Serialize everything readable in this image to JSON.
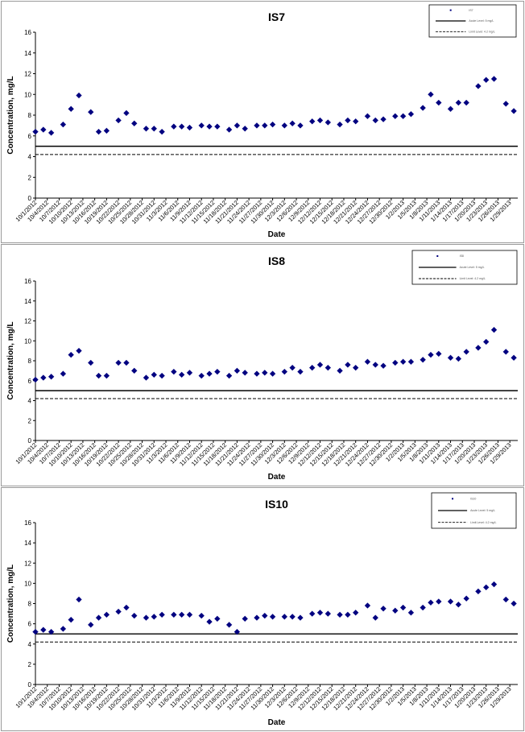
{
  "chart_data": [
    {
      "type": "scatter",
      "title": "IS7",
      "xlabel": "Date",
      "ylabel": "Concentration, mg/L",
      "ylim": [
        0,
        16
      ],
      "yticks": [
        0,
        2,
        4,
        6,
        8,
        10,
        12,
        14,
        16
      ],
      "xtick_labels": [
        "10/1/2012",
        "10/4/2012",
        "10/7/2012",
        "10/10/2012",
        "10/13/2012",
        "10/16/2012",
        "10/19/2012",
        "10/22/2012",
        "10/25/2012",
        "10/28/2012",
        "10/31/2012",
        "11/3/2012",
        "11/6/2012",
        "11/9/2012",
        "11/12/2012",
        "11/15/2012",
        "11/18/2012",
        "11/21/2012",
        "11/24/2012",
        "11/27/2012",
        "11/30/2012",
        "12/3/2012",
        "12/6/2012",
        "12/9/2012",
        "12/12/2012",
        "12/15/2012",
        "12/18/2012",
        "12/21/2012",
        "12/24/2012",
        "12/27/2012",
        "12/30/2012",
        "1/2/2013",
        "1/5/2013",
        "1/8/2013",
        "1/11/2013",
        "1/14/2013",
        "1/17/2013",
        "1/20/2013",
        "1/23/2013",
        "1/26/2013",
        "1/29/2013"
      ],
      "x_range": [
        "10/1/2012",
        "1/31/2013"
      ],
      "grid": false,
      "legend": {
        "placement": "top-right",
        "entries": [
          {
            "label": "IS7",
            "style": "marker"
          },
          {
            "label": "Acute Level: 5 mg/L",
            "style": "solid"
          },
          {
            "label": "Limit Level: 4.2 mg/L",
            "style": "dashed"
          }
        ]
      },
      "reference_lines": [
        {
          "label": "Acute Level: 5 mg/L",
          "y": 5,
          "style": "solid"
        },
        {
          "label": "Limit Level: 4.2 mg/L",
          "y": 4.2,
          "style": "dashed"
        }
      ],
      "series": [
        {
          "name": "IS7",
          "color": "#000080",
          "points": [
            [
              "10/1/2012",
              6.4
            ],
            [
              "10/3/2012",
              6.6
            ],
            [
              "10/5/2012",
              6.3
            ],
            [
              "10/8/2012",
              7.1
            ],
            [
              "10/10/2012",
              8.6
            ],
            [
              "10/12/2012",
              9.9
            ],
            [
              "10/15/2012",
              8.3
            ],
            [
              "10/17/2012",
              6.4
            ],
            [
              "10/19/2012",
              6.5
            ],
            [
              "10/22/2012",
              7.5
            ],
            [
              "10/24/2012",
              8.2
            ],
            [
              "10/26/2012",
              7.2
            ],
            [
              "10/29/2012",
              6.7
            ],
            [
              "10/31/2012",
              6.7
            ],
            [
              "11/2/2012",
              6.4
            ],
            [
              "11/5/2012",
              6.9
            ],
            [
              "11/7/2012",
              6.9
            ],
            [
              "11/9/2012",
              6.8
            ],
            [
              "11/12/2012",
              7.0
            ],
            [
              "11/14/2012",
              6.9
            ],
            [
              "11/16/2012",
              6.9
            ],
            [
              "11/19/2012",
              6.6
            ],
            [
              "11/21/2012",
              7.0
            ],
            [
              "11/23/2012",
              6.7
            ],
            [
              "11/26/2012",
              7.0
            ],
            [
              "11/28/2012",
              7.0
            ],
            [
              "11/30/2012",
              7.1
            ],
            [
              "12/3/2012",
              7.0
            ],
            [
              "12/5/2012",
              7.2
            ],
            [
              "12/7/2012",
              7.0
            ],
            [
              "12/10/2012",
              7.4
            ],
            [
              "12/12/2012",
              7.5
            ],
            [
              "12/14/2012",
              7.3
            ],
            [
              "12/17/2012",
              7.1
            ],
            [
              "12/19/2012",
              7.5
            ],
            [
              "12/21/2012",
              7.4
            ],
            [
              "12/24/2012",
              7.9
            ],
            [
              "12/26/2012",
              7.5
            ],
            [
              "12/28/2012",
              7.6
            ],
            [
              "12/31/2012",
              7.9
            ],
            [
              "1/2/2013",
              7.9
            ],
            [
              "1/4/2013",
              8.1
            ],
            [
              "1/7/2013",
              8.7
            ],
            [
              "1/9/2013",
              10.0
            ],
            [
              "1/11/2013",
              9.2
            ],
            [
              "1/14/2013",
              8.6
            ],
            [
              "1/16/2013",
              9.2
            ],
            [
              "1/18/2013",
              9.2
            ],
            [
              "1/21/2013",
              10.8
            ],
            [
              "1/23/2013",
              11.4
            ],
            [
              "1/25/2013",
              11.5
            ],
            [
              "1/28/2013",
              9.1
            ],
            [
              "1/30/2013",
              8.4
            ]
          ]
        }
      ]
    },
    {
      "type": "scatter",
      "title": "IS8",
      "xlabel": "Date",
      "ylabel": "Concentration, mg/L",
      "ylim": [
        0,
        16
      ],
      "yticks": [
        0,
        2,
        4,
        6,
        8,
        10,
        12,
        14,
        16
      ],
      "xtick_labels": [
        "10/1/2012",
        "10/4/2012",
        "10/7/2012",
        "10/10/2012",
        "10/13/2012",
        "10/16/2012",
        "10/19/2012",
        "10/22/2012",
        "10/25/2012",
        "10/28/2012",
        "10/31/2012",
        "11/3/2012",
        "11/6/2012",
        "11/9/2012",
        "11/12/2012",
        "11/15/2012",
        "11/18/2012",
        "11/21/2012",
        "11/24/2012",
        "11/27/2012",
        "11/30/2012",
        "12/3/2012",
        "12/6/2012",
        "12/9/2012",
        "12/12/2012",
        "12/15/2012",
        "12/18/2012",
        "12/21/2012",
        "12/24/2012",
        "12/27/2012",
        "12/30/2012",
        "1/2/2013",
        "1/5/2013",
        "1/8/2013",
        "1/11/2013",
        "1/14/2013",
        "1/17/2013",
        "1/20/2013",
        "1/23/2013",
        "1/26/2013",
        "1/29/2013"
      ],
      "x_range": [
        "10/1/2012",
        "1/31/2013"
      ],
      "grid": false,
      "legend": {
        "placement": "top-right",
        "entries": [
          {
            "label": "IS8",
            "style": "marker"
          },
          {
            "label": "Acute Level: 5 mg/L",
            "style": "solid"
          },
          {
            "label": "Limit Level: 4.2 mg/L",
            "style": "dashed"
          }
        ]
      },
      "reference_lines": [
        {
          "label": "Acute Level: 5 mg/L",
          "y": 5,
          "style": "solid"
        },
        {
          "label": "Limit Level: 4.2 mg/L",
          "y": 4.2,
          "style": "dashed"
        }
      ],
      "series": [
        {
          "name": "IS8",
          "color": "#000080",
          "points": [
            [
              "10/1/2012",
              6.1
            ],
            [
              "10/3/2012",
              6.3
            ],
            [
              "10/5/2012",
              6.4
            ],
            [
              "10/8/2012",
              6.7
            ],
            [
              "10/10/2012",
              8.6
            ],
            [
              "10/12/2012",
              9.0
            ],
            [
              "10/15/2012",
              7.8
            ],
            [
              "10/17/2012",
              6.5
            ],
            [
              "10/19/2012",
              6.5
            ],
            [
              "10/22/2012",
              7.8
            ],
            [
              "10/24/2012",
              7.8
            ],
            [
              "10/26/2012",
              7.0
            ],
            [
              "10/29/2012",
              6.3
            ],
            [
              "10/31/2012",
              6.6
            ],
            [
              "11/2/2012",
              6.5
            ],
            [
              "11/5/2012",
              6.9
            ],
            [
              "11/7/2012",
              6.6
            ],
            [
              "11/9/2012",
              6.8
            ],
            [
              "11/12/2012",
              6.5
            ],
            [
              "11/14/2012",
              6.7
            ],
            [
              "11/16/2012",
              6.9
            ],
            [
              "11/19/2012",
              6.5
            ],
            [
              "11/21/2012",
              7.0
            ],
            [
              "11/23/2012",
              6.8
            ],
            [
              "11/26/2012",
              6.7
            ],
            [
              "11/28/2012",
              6.8
            ],
            [
              "11/30/2012",
              6.7
            ],
            [
              "12/3/2012",
              6.9
            ],
            [
              "12/5/2012",
              7.3
            ],
            [
              "12/7/2012",
              6.9
            ],
            [
              "12/10/2012",
              7.3
            ],
            [
              "12/12/2012",
              7.6
            ],
            [
              "12/14/2012",
              7.3
            ],
            [
              "12/17/2012",
              7.0
            ],
            [
              "12/19/2012",
              7.6
            ],
            [
              "12/21/2012",
              7.3
            ],
            [
              "12/24/2012",
              7.9
            ],
            [
              "12/26/2012",
              7.6
            ],
            [
              "12/28/2012",
              7.5
            ],
            [
              "12/31/2012",
              7.8
            ],
            [
              "1/2/2013",
              7.9
            ],
            [
              "1/4/2013",
              7.9
            ],
            [
              "1/7/2013",
              8.1
            ],
            [
              "1/9/2013",
              8.6
            ],
            [
              "1/11/2013",
              8.7
            ],
            [
              "1/14/2013",
              8.3
            ],
            [
              "1/16/2013",
              8.2
            ],
            [
              "1/18/2013",
              8.9
            ],
            [
              "1/21/2013",
              9.3
            ],
            [
              "1/23/2013",
              9.9
            ],
            [
              "1/25/2013",
              11.1
            ],
            [
              "1/28/2013",
              8.9
            ],
            [
              "1/30/2013",
              8.3
            ]
          ]
        }
      ]
    },
    {
      "type": "scatter",
      "title": "IS10",
      "xlabel": "Date",
      "ylabel": "Concentration, mg/L",
      "ylim": [
        0,
        16
      ],
      "yticks": [
        0,
        2,
        4,
        6,
        8,
        10,
        12,
        14,
        16
      ],
      "xtick_labels": [
        "10/1/2012",
        "10/4/2012",
        "10/7/2012",
        "10/10/2012",
        "10/13/2012",
        "10/16/2012",
        "10/19/2012",
        "10/22/2012",
        "10/25/2012",
        "10/28/2012",
        "10/31/2012",
        "11/3/2012",
        "11/6/2012",
        "11/9/2012",
        "11/12/2012",
        "11/15/2012",
        "11/18/2012",
        "11/21/2012",
        "11/24/2012",
        "11/27/2012",
        "11/30/2012",
        "12/3/2012",
        "12/6/2012",
        "12/9/2012",
        "12/12/2012",
        "12/15/2012",
        "12/18/2012",
        "12/21/2012",
        "12/24/2012",
        "12/27/2012",
        "12/30/2012",
        "1/2/2013",
        "1/5/2013",
        "1/8/2013",
        "1/11/2013",
        "1/14/2013",
        "1/17/2013",
        "1/20/2013",
        "1/23/2013",
        "1/26/2013",
        "1/29/2013"
      ],
      "x_range": [
        "10/1/2012",
        "1/31/2013"
      ],
      "grid": false,
      "legend": {
        "placement": "top-right",
        "entries": [
          {
            "label": "IS10",
            "style": "marker"
          },
          {
            "label": "Acute Level: 5 mg/L",
            "style": "solid"
          },
          {
            "label": "Limit Level: 4.2 mg/L",
            "style": "dashed"
          }
        ]
      },
      "reference_lines": [
        {
          "label": "Acute Level: 5 mg/L",
          "y": 5,
          "style": "solid"
        },
        {
          "label": "Limit Level: 4.2 mg/L",
          "y": 4.2,
          "style": "dashed"
        }
      ],
      "series": [
        {
          "name": "IS10",
          "color": "#000080",
          "points": [
            [
              "10/1/2012",
              5.2
            ],
            [
              "10/3/2012",
              5.4
            ],
            [
              "10/5/2012",
              5.2
            ],
            [
              "10/8/2012",
              5.5
            ],
            [
              "10/10/2012",
              6.4
            ],
            [
              "10/12/2012",
              8.4
            ],
            [
              "10/15/2012",
              5.9
            ],
            [
              "10/17/2012",
              6.6
            ],
            [
              "10/19/2012",
              6.9
            ],
            [
              "10/22/2012",
              7.2
            ],
            [
              "10/24/2012",
              7.6
            ],
            [
              "10/26/2012",
              6.8
            ],
            [
              "10/29/2012",
              6.6
            ],
            [
              "10/31/2012",
              6.7
            ],
            [
              "11/2/2012",
              6.9
            ],
            [
              "11/5/2012",
              6.9
            ],
            [
              "11/7/2012",
              6.9
            ],
            [
              "11/9/2012",
              6.9
            ],
            [
              "11/12/2012",
              6.8
            ],
            [
              "11/14/2012",
              6.2
            ],
            [
              "11/16/2012",
              6.5
            ],
            [
              "11/19/2012",
              5.9
            ],
            [
              "11/21/2012",
              5.2
            ],
            [
              "11/23/2012",
              6.5
            ],
            [
              "11/26/2012",
              6.6
            ],
            [
              "11/28/2012",
              6.8
            ],
            [
              "11/30/2012",
              6.7
            ],
            [
              "12/3/2012",
              6.7
            ],
            [
              "12/5/2012",
              6.7
            ],
            [
              "12/7/2012",
              6.6
            ],
            [
              "12/10/2012",
              7.0
            ],
            [
              "12/12/2012",
              7.1
            ],
            [
              "12/14/2012",
              7.0
            ],
            [
              "12/17/2012",
              6.9
            ],
            [
              "12/19/2012",
              6.9
            ],
            [
              "12/21/2012",
              7.1
            ],
            [
              "12/24/2012",
              7.8
            ],
            [
              "12/26/2012",
              6.6
            ],
            [
              "12/28/2012",
              7.5
            ],
            [
              "12/31/2012",
              7.3
            ],
            [
              "1/2/2013",
              7.6
            ],
            [
              "1/4/2013",
              7.1
            ],
            [
              "1/7/2013",
              7.6
            ],
            [
              "1/9/2013",
              8.1
            ],
            [
              "1/11/2013",
              8.2
            ],
            [
              "1/14/2013",
              8.2
            ],
            [
              "1/16/2013",
              7.9
            ],
            [
              "1/18/2013",
              8.5
            ],
            [
              "1/21/2013",
              9.2
            ],
            [
              "1/23/2013",
              9.6
            ],
            [
              "1/25/2013",
              9.9
            ],
            [
              "1/28/2013",
              8.4
            ],
            [
              "1/30/2013",
              8.0
            ]
          ]
        }
      ]
    }
  ]
}
